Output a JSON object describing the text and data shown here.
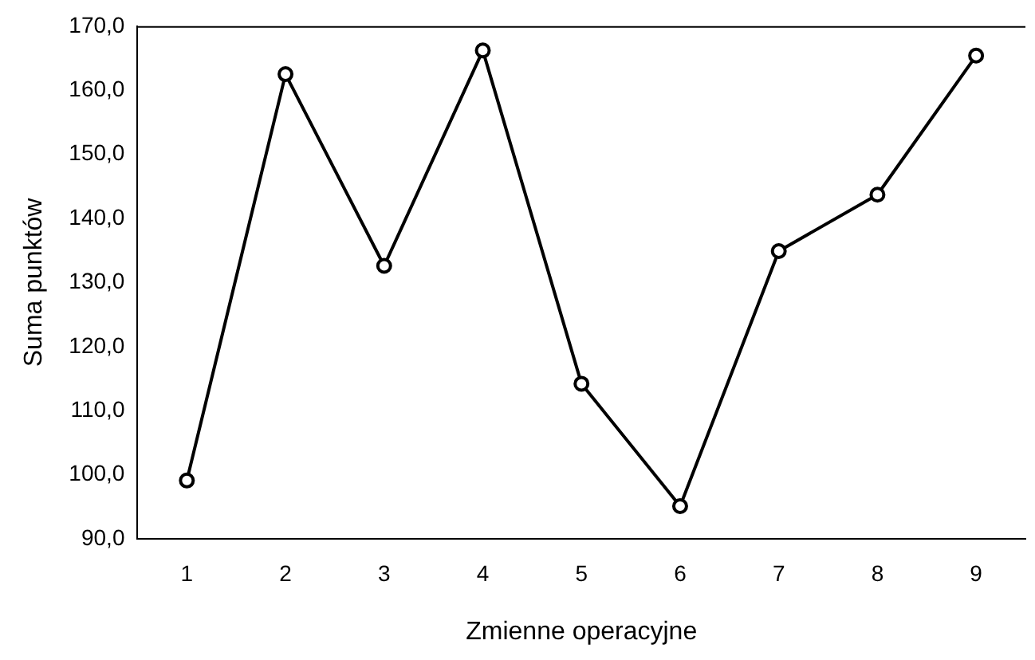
{
  "chart_data": {
    "type": "line",
    "xlabel": "Zmienne operacyjne",
    "ylabel": "Suma punktów",
    "categories": [
      "1",
      "2",
      "3",
      "4",
      "5",
      "6",
      "7",
      "8",
      "9"
    ],
    "series": [
      {
        "color": "#000000",
        "values": [
          99.1,
          162.5,
          132.6,
          166.2,
          114.2,
          95.1,
          134.9,
          143.7,
          165.4
        ]
      }
    ],
    "ylim": [
      90,
      170
    ],
    "yticks": [
      {
        "value": 90,
        "label": "90,0"
      },
      {
        "value": 100,
        "label": "100,0"
      },
      {
        "value": 110,
        "label": "110,0"
      },
      {
        "value": 120,
        "label": "120,0"
      },
      {
        "value": 130,
        "label": "130,0"
      },
      {
        "value": 140,
        "label": "140,0"
      },
      {
        "value": 150,
        "label": "150,0"
      },
      {
        "value": 160,
        "label": "160,0"
      },
      {
        "value": 170,
        "label": "170,0"
      }
    ],
    "grid": false,
    "legend": false,
    "marker": "circle",
    "line_style": "solid"
  }
}
